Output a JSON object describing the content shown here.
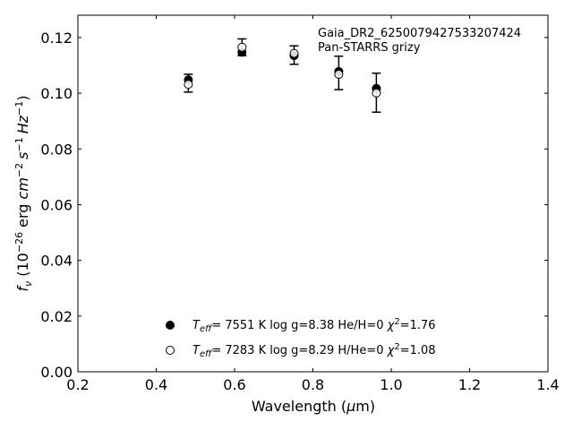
{
  "chart_data": {
    "type": "scatter",
    "annotation_lines": [
      "Gaia_DR2_6250079427533207424",
      "Pan-STARRS grizy"
    ],
    "xlabel_parts": [
      "Wavelength (",
      "μ",
      "m)"
    ],
    "ylabel_parts": {
      "f": "f",
      "nu": "ν",
      "open": " (10",
      "exp1": "−26",
      "erg": " erg ",
      "cm": "cm",
      "exp2": "−2",
      "s": "s",
      "exp3": "−1",
      "hz": "Hz",
      "exp4": "−1",
      "close": ")"
    },
    "xlim": [
      0.2,
      1.4
    ],
    "ylim": [
      0.0,
      0.128
    ],
    "xticks": [
      0.2,
      0.4,
      0.6,
      0.8,
      1.0,
      1.2,
      1.4
    ],
    "xtick_labels": [
      "0.2",
      "0.4",
      "0.6",
      "0.8",
      "1.0",
      "1.2",
      "1.4"
    ],
    "yticks": [
      0.0,
      0.02,
      0.04,
      0.06,
      0.08,
      0.1,
      0.12
    ],
    "ytick_labels": [
      "0.00",
      "0.02",
      "0.04",
      "0.06",
      "0.08",
      "0.10",
      "0.12"
    ],
    "grid": false,
    "legend_position": "lower-center",
    "observed": {
      "x": [
        0.482,
        0.619,
        0.752,
        0.866,
        0.962
      ],
      "y": [
        0.1036,
        0.1165,
        0.1137,
        0.1073,
        0.1002
      ],
      "yerr": [
        0.0032,
        0.003,
        0.0033,
        0.006,
        0.007
      ]
    },
    "series": [
      {
        "marker": "filled",
        "label_parts": {
          "T": "T",
          "sub": "eff",
          "value": "=  7551 K  log g=8.38  He/H=0  ",
          "chi": "χ",
          "sup": "2",
          "chi_value": "=1.76"
        },
        "x": [
          0.482,
          0.619,
          0.752,
          0.866,
          0.962
        ],
        "y": [
          0.1048,
          0.1147,
          0.1135,
          0.1078,
          0.1017
        ]
      },
      {
        "marker": "open",
        "label_parts": {
          "T": "T",
          "sub": "eff",
          "value": "=  7283 K  log g=8.29  H/He=0  ",
          "chi": "χ",
          "sup": "2",
          "chi_value": "=1.08"
        },
        "x": [
          0.482,
          0.619,
          0.752,
          0.866,
          0.962
        ],
        "y": [
          0.1032,
          0.1165,
          0.1143,
          0.1068,
          0.1001
        ]
      }
    ]
  }
}
